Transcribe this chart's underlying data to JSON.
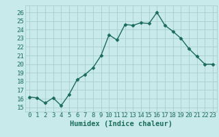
{
  "x": [
    0,
    1,
    2,
    3,
    4,
    5,
    6,
    7,
    8,
    9,
    10,
    11,
    12,
    13,
    14,
    15,
    16,
    17,
    18,
    19,
    20,
    21,
    22,
    23
  ],
  "y": [
    16.2,
    16.1,
    15.5,
    16.1,
    15.2,
    16.5,
    18.2,
    18.8,
    19.6,
    21.0,
    23.4,
    22.8,
    24.6,
    24.5,
    24.8,
    24.7,
    26.0,
    24.5,
    23.8,
    23.0,
    21.8,
    20.9,
    20.0,
    20.0
  ],
  "line_color": "#1a6b5a",
  "marker": "D",
  "marker_size": 2.5,
  "line_width": 1.0,
  "bg_color": "#c8eaea",
  "grid_color": "#a8cccc",
  "tick_color": "#1a6b5a",
  "xlabel": "Humidex (Indice chaleur)",
  "xlabel_fontsize": 7.5,
  "ylim": [
    14.5,
    26.8
  ],
  "yticks": [
    15,
    16,
    17,
    18,
    19,
    20,
    21,
    22,
    23,
    24,
    25,
    26
  ],
  "xticks": [
    0,
    1,
    2,
    3,
    4,
    5,
    6,
    7,
    8,
    9,
    10,
    11,
    12,
    13,
    14,
    15,
    16,
    17,
    18,
    19,
    20,
    21,
    22,
    23
  ],
  "tick_fontsize": 6.5,
  "xlim": [
    -0.5,
    23.5
  ]
}
